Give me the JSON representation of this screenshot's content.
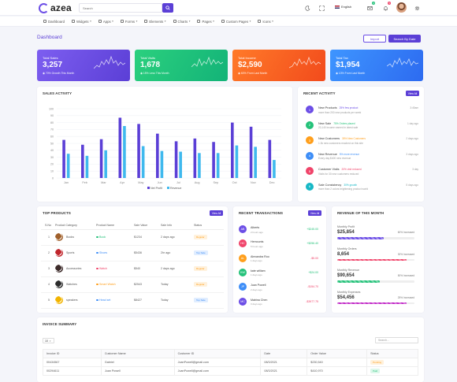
{
  "brand": {
    "name": "azea"
  },
  "search": {
    "placeholder": "Search"
  },
  "topbar": {
    "language": "English",
    "mail_badge": "2",
    "notify_badge": "5"
  },
  "menu": [
    {
      "label": "Dashboard",
      "chevron": false
    },
    {
      "label": "Widgets",
      "chevron": true
    },
    {
      "label": "Apps",
      "chevron": true
    },
    {
      "label": "Forms",
      "chevron": true
    },
    {
      "label": "Elements",
      "chevron": true
    },
    {
      "label": "Charts",
      "chevron": true
    },
    {
      "label": "Pages",
      "chevron": true
    },
    {
      "label": "Custom Pages",
      "chevron": true
    },
    {
      "label": "Icons",
      "chevron": true
    }
  ],
  "page": {
    "title": "Dashboard",
    "import_label": "Import",
    "date_label": "Search By Date"
  },
  "stats": [
    {
      "label": "Total Sales",
      "value": "3,257",
      "sub": "70% Growth This Month",
      "colors": [
        "#7d5ef0",
        "#5b3fd6"
      ]
    },
    {
      "label": "Total Visits",
      "value": "1,678",
      "sub": "15% Less This Month",
      "colors": [
        "#2bd07e",
        "#13b378"
      ]
    },
    {
      "label": "Total Income",
      "value": "$2,590",
      "sub": "60% From Last Month",
      "colors": [
        "#ff7a29",
        "#f24b1c"
      ]
    },
    {
      "label": "Total Tax",
      "value": "$1,954",
      "sub": "13% From Last Month",
      "colors": [
        "#3e95ff",
        "#2d6bf0"
      ]
    }
  ],
  "sales": {
    "title": "SALES ACTIVITY"
  },
  "chart_data": {
    "type": "bar",
    "title": "SALES ACTIVITY",
    "categories": [
      "Jan",
      "Feb",
      "Mar",
      "Apr",
      "May",
      "Jun",
      "Jul",
      "Aug",
      "Sep",
      "Oct",
      "Nov",
      "Dec"
    ],
    "series": [
      {
        "name": "Net Profit",
        "color": "#5b3fd6",
        "values": [
          55,
          48,
          56,
          87,
          78,
          64,
          53,
          57,
          52,
          80,
          74,
          55
        ]
      },
      {
        "name": "Revenue",
        "color": "#3fb9ee",
        "values": [
          35,
          32,
          40,
          75,
          46,
          39,
          38,
          36,
          36,
          47,
          45,
          26
        ]
      }
    ],
    "ylim": [
      0,
      100
    ],
    "yticks": [
      0,
      10,
      20,
      30,
      40,
      50,
      60,
      70,
      80,
      90,
      100
    ],
    "grid": true,
    "legend": "bottom"
  },
  "activity": {
    "title": "RECENT ACTIVITY",
    "view_all": "View All",
    "items": [
      {
        "icon": "1",
        "color": "#6c4ee6",
        "title": "New Products",
        "tag": "25% few product",
        "tag_color": "#6c4ee6",
        "desc": "more than 200 new products per week",
        "time": "3:45am"
      },
      {
        "icon": "2",
        "color": "#25c27a",
        "title": "New Sale",
        "tag": "75% Orders placed",
        "tag_color": "#25c27a",
        "desc": "20,140 income earned in latest sale",
        "time": "1 day ago"
      },
      {
        "icon": "3",
        "color": "#ff9f1c",
        "title": "New Customers",
        "tag": "35% New Customers",
        "tag_color": "#ff9f1c",
        "desc": "1.3k new customers reached on this site",
        "time": "2 days ago"
      },
      {
        "icon": "4",
        "color": "#3e8ef7",
        "title": "New Revenue",
        "tag": "5% more revenue",
        "tag_color": "#3e8ef7",
        "desc": "Every day $400 new revenue",
        "time": "3 days ago"
      },
      {
        "icon": "5",
        "color": "#f0446a",
        "title": "Customer Visits",
        "tag": "20% visit reduced",
        "tag_color": "#f0446a",
        "desc": "Visits for 30 new customers reduced",
        "time": "3 day"
      },
      {
        "icon": "6",
        "color": "#17b8c6",
        "title": "Sale Consistency",
        "tag": "30% growth",
        "tag_color": "#17b8c6",
        "desc": "more than 2 colors brightening product world",
        "time": "5 days ago"
      }
    ]
  },
  "top_products": {
    "title": "TOP PRODUCTS",
    "view_all": "View All",
    "columns": [
      "S.No",
      "Product Category",
      "Product Name",
      "Sale Value",
      "Sale Info",
      "Status"
    ],
    "rows": [
      {
        "no": "1",
        "category": "Books",
        "name": "Book",
        "dot": "#25c27a",
        "value": "$1234",
        "info": "2 days ago",
        "status": "Regular",
        "pill_bg": "#fff1dc",
        "pill_fg": "#ff9f1c",
        "img": "#a0602b"
      },
      {
        "no": "2",
        "category": "Sports",
        "name": "Shoes",
        "dot": "#3e8ef7",
        "value": "$5436",
        "info": "2hr ago",
        "status": "Top Sale",
        "pill_bg": "#e0edff",
        "pill_fg": "#3e8ef7",
        "img": "#c0262c"
      },
      {
        "no": "3",
        "category": "Accessories",
        "name": "Watch",
        "dot": "#f0446a",
        "value": "$540",
        "info": "2 days ago",
        "status": "Regular",
        "pill_bg": "#fff1dc",
        "pill_fg": "#ff9f1c",
        "img": "#3d2b2a"
      },
      {
        "no": "4",
        "category": "Watches",
        "name": "Smart Watch",
        "dot": "#ff9f1c",
        "value": "$2543",
        "info": "Today",
        "status": "Regular",
        "pill_bg": "#fff1dc",
        "pill_fg": "#ff9f1c",
        "img": "#2d2d2d"
      },
      {
        "no": "5",
        "category": "speakers",
        "name": "Head set",
        "dot": "#3e8ef7",
        "value": "$8427",
        "info": "Today",
        "status": "Top Sale",
        "pill_bg": "#e0edff",
        "pill_fg": "#3e8ef7",
        "img": "#f2b400"
      }
    ]
  },
  "transactions": {
    "title": "RECENT TRANSACTIONS",
    "view_all": "View All",
    "items": [
      {
        "initials": "AB",
        "color": "#6c4ee6",
        "name": "Alberts",
        "time": "2 hours ago",
        "amount": "+$245.00",
        "amount_color": "#25c27a"
      },
      {
        "initials": "HC",
        "color": "#f0446a",
        "name": "Hemounts",
        "time": "5 hours ago",
        "amount": "+$256.40",
        "amount_color": "#25c27a"
      },
      {
        "initials": "AL",
        "color": "#ff9f1c",
        "name": "Alexandra Roo",
        "time": "1 days ago",
        "amount": "-$5.00",
        "amount_color": "#f0446a"
      },
      {
        "initials": "KW",
        "color": "#25c27a",
        "name": "kate william",
        "time": "1 days ago",
        "amount": "+$24.00",
        "amount_color": "#25c27a"
      },
      {
        "initials": "JP",
        "color": "#3e8ef7",
        "name": "Juan Powell",
        "time": "2 days ago",
        "amount": "-$154.70",
        "amount_color": "#f0446a"
      },
      {
        "initials": "MC",
        "color": "#6c4ee6",
        "name": "Mabina Chen",
        "time": "3 days ago",
        "amount": "-$3977.75",
        "amount_color": "#f0446a"
      }
    ]
  },
  "revenue": {
    "title": "REVENUE OF THIS MONTH",
    "items": [
      {
        "label": "Monthly Profit",
        "value": "$25,854",
        "pct": "60% Increased",
        "fill": 0.6,
        "color": "#6c4ee6"
      },
      {
        "label": "Monthly Orders",
        "value": "8,654",
        "pct": "30% Increased",
        "fill": 0.9,
        "color": "#f0446a"
      },
      {
        "label": "Monthly Revenue",
        "value": "$90,654",
        "pct": "50% Increased",
        "fill": 0.55,
        "color": "#25c27a"
      },
      {
        "label": "Monthly Expenses",
        "value": "$54,456",
        "pct": "25% Increased",
        "fill": 0.9,
        "color": "#c026c6"
      }
    ]
  },
  "invoice": {
    "title": "INVOICE SUMMARY",
    "page_size": "10",
    "search_placeholder": "Search...",
    "columns": [
      "Invoice ID",
      "Customer Name",
      "Customer ID",
      "Date",
      "Order Value",
      "Status"
    ],
    "rows": [
      {
        "id": "00434567",
        "name": "Gabriel",
        "cid": "JoanPowell@gmail.com",
        "date": "08/3/2021",
        "value": "$230,540",
        "status": "Pending",
        "pill_bg": "#fff1dc",
        "pill_fg": "#ff9f1c"
      },
      {
        "id": "00294611",
        "name": "Juan Powell",
        "cid": "JuanPowell@gmail.com",
        "date": "08/3/2021",
        "value": "$410,970",
        "status": "Paid",
        "pill_bg": "#dcf7ea",
        "pill_fg": "#25c27a"
      }
    ]
  }
}
